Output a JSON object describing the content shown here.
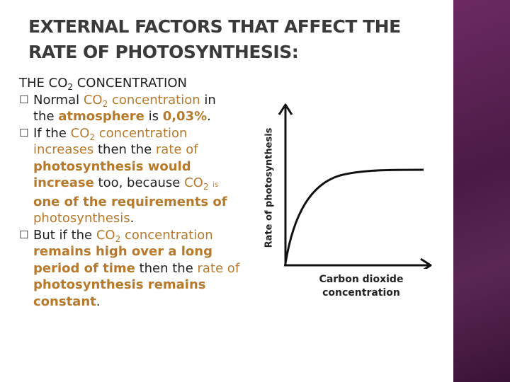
{
  "title": {
    "line1": "EXTERNAL FACTORS THAT AFFECT THE",
    "line2": "RATE OF PHOTOSYNTHESIS:"
  },
  "heading": {
    "pre": "THE CO",
    "sub": "2",
    "post": " CONCENTRATION"
  },
  "bullets": {
    "b1": {
      "t1": "Normal ",
      "co2": "CO",
      "sub": "2",
      "concentration": " concentration",
      "t2": " in",
      "t3": "the ",
      "atmosphere": "atmosphere",
      "t4": " is ",
      "value": "0,03%",
      "t5": "."
    },
    "b2": {
      "t1": "If the ",
      "co2": "CO",
      "sub": "2",
      "concentration": " concentration",
      "increases": "increases",
      "t2": " then the ",
      "rate_of": "rate of",
      "photo": "photosynthesis would",
      "increase": "increase",
      "t3": " too, because ",
      "co2b": "CO",
      "subb": "2",
      "is": "is",
      "req": "one of the requirements of",
      "photo2": "photosynthesis",
      "t4": "."
    },
    "b3": {
      "t1": "But if the ",
      "co2": "CO",
      "sub": "2",
      "concentration": " concentration",
      "remains": "remains high over a long",
      "period": "period of time",
      "t2": " then the ",
      "rate_of": "rate of",
      "photo": "photosynthesis remains",
      "constant": "constant",
      "t3": "."
    }
  },
  "graph": {
    "ylabel": "Rate of photosynthesis",
    "xlabel_line1": "Carbon dioxide",
    "xlabel_line2": "concentration"
  },
  "colors": {
    "highlight": "#b7792a",
    "sidebar": "#5a2754"
  }
}
